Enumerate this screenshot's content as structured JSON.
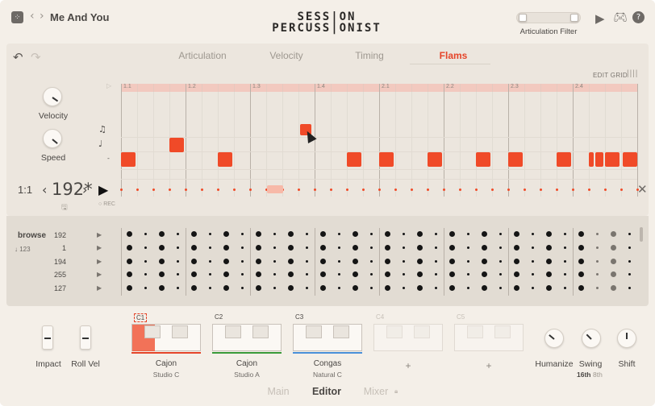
{
  "topbar": {
    "kit_name": "Me And You",
    "logo_line1": "SESS|ON",
    "logo_line2": "PERCUSS|ONIST",
    "artic_filter_label": "Articulation Filter",
    "icons": [
      "grid-icon",
      "back-icon",
      "forward-icon",
      "play-icon",
      "gamepad-icon",
      "help-icon"
    ]
  },
  "editor": {
    "tabs": [
      "Articulation",
      "Velocity",
      "Timing",
      "Flams"
    ],
    "active_tab": "Flams",
    "edit_grid_label": "EDIT GRID",
    "knobs": [
      {
        "label": "Velocity"
      },
      {
        "label": "Speed"
      }
    ],
    "beat_labels": [
      "1.1",
      "1.2",
      "1.3",
      "1.4",
      "2.1",
      "2.2",
      "2.3",
      "2.4"
    ],
    "ratio": "1:1",
    "bpm": "192*",
    "rec_label": "REC",
    "accent": "#f04a28"
  },
  "browser": {
    "title": "browse",
    "sort_label": "123",
    "tempos": [
      "192",
      "1",
      "194",
      "255",
      "127"
    ]
  },
  "bottom": {
    "impact_label": "Impact",
    "rollvel_label": "Roll Vel",
    "slots": [
      {
        "slot": "C1",
        "name": "Cajon",
        "sub": "Studio C",
        "underline": "#e5452a"
      },
      {
        "slot": "C2",
        "name": "Cajon",
        "sub": "Studio A",
        "underline": "#3a9a3a"
      },
      {
        "slot": "C3",
        "name": "Congas",
        "sub": "Natural C",
        "underline": "#4a90d9"
      },
      {
        "slot": "C4",
        "name": "",
        "sub": "",
        "underline": ""
      },
      {
        "slot": "C5",
        "name": "",
        "sub": "",
        "underline": ""
      }
    ],
    "plus": "+",
    "humanize_label": "Humanize",
    "swing_label": "Swing",
    "swing_opt1": "16th",
    "swing_opt2": "8th",
    "shift_label": "Shift"
  },
  "nav": {
    "tabs": [
      "Main",
      "Editor",
      "Mixer"
    ],
    "active": "Editor"
  }
}
